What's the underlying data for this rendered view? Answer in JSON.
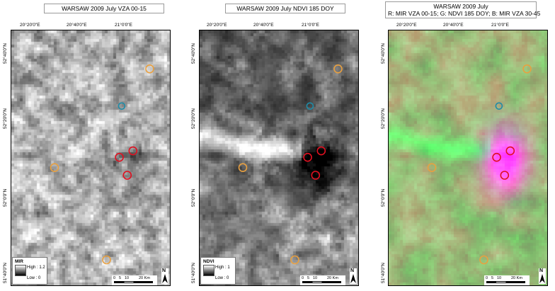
{
  "panels": [
    {
      "title_lines": [
        "WARSAW 2009 July VZA 00-15"
      ],
      "mode": "mir",
      "top_ticks": [
        "20°20'0\"E",
        "20°40'0\"E",
        "21°0'0\"E"
      ],
      "left_ticks": [
        "52°40'0\"N",
        "52°20'0\"N",
        "52°0'0\"N",
        "51°40'0\"N"
      ],
      "legend": {
        "title": "MIR",
        "high": "High : 1.2",
        "low": "Low : 0"
      },
      "scale_labels": [
        "0",
        "5",
        "10",
        "20 Km"
      ],
      "north": "N"
    },
    {
      "title_lines": [
        "WARSAW 2009 July NDVI 185 DOY"
      ],
      "mode": "ndvi",
      "top_ticks": [
        "20°20'0\"E",
        "20°40'0\"E",
        "21°0'0\"E"
      ],
      "left_ticks": [
        "52°40'0\"N",
        "52°20'0\"N",
        "52°0'0\"N",
        "51°40'0\"N"
      ],
      "legend": {
        "title": "NDVI",
        "high": "High : 1",
        "low": "Low : 0"
      },
      "scale_labels": [
        "0",
        "5",
        "10",
        "20 Km"
      ],
      "north": "N"
    },
    {
      "title_lines": [
        "WARSAW 2009 July",
        "R: MIR VZA 00-15; G: NDVI 185 DOY; B: MIR VZA 30-45"
      ],
      "mode": "rgb",
      "top_ticks": [
        "20°20'0\"E",
        "20°40'0\"E",
        "21°0'0\"E"
      ],
      "left_ticks": [
        "52°40'0\"N",
        "52°20'0\"N",
        "52°0'0\"N",
        "51°40'0\"N"
      ],
      "scale_labels": [
        "0",
        "5",
        "10",
        "20 Km"
      ],
      "north": "N"
    }
  ],
  "markers": [
    {
      "category": "rural",
      "fx": 0.865,
      "fy": 0.15,
      "color": "#e8a040"
    },
    {
      "category": "reference",
      "fx": 0.69,
      "fy": 0.295,
      "color": "#1e8ca8"
    },
    {
      "category": "urban",
      "fx": 0.76,
      "fy": 0.47,
      "color": "#e01020"
    },
    {
      "category": "urban",
      "fx": 0.675,
      "fy": 0.495,
      "color": "#e01020"
    },
    {
      "category": "urban",
      "fx": 0.725,
      "fy": 0.565,
      "color": "#e01020"
    },
    {
      "category": "rural",
      "fx": 0.27,
      "fy": 0.535,
      "color": "#e8a040"
    },
    {
      "category": "rural",
      "fx": 0.595,
      "fy": 0.895,
      "color": "#e8a040"
    }
  ]
}
